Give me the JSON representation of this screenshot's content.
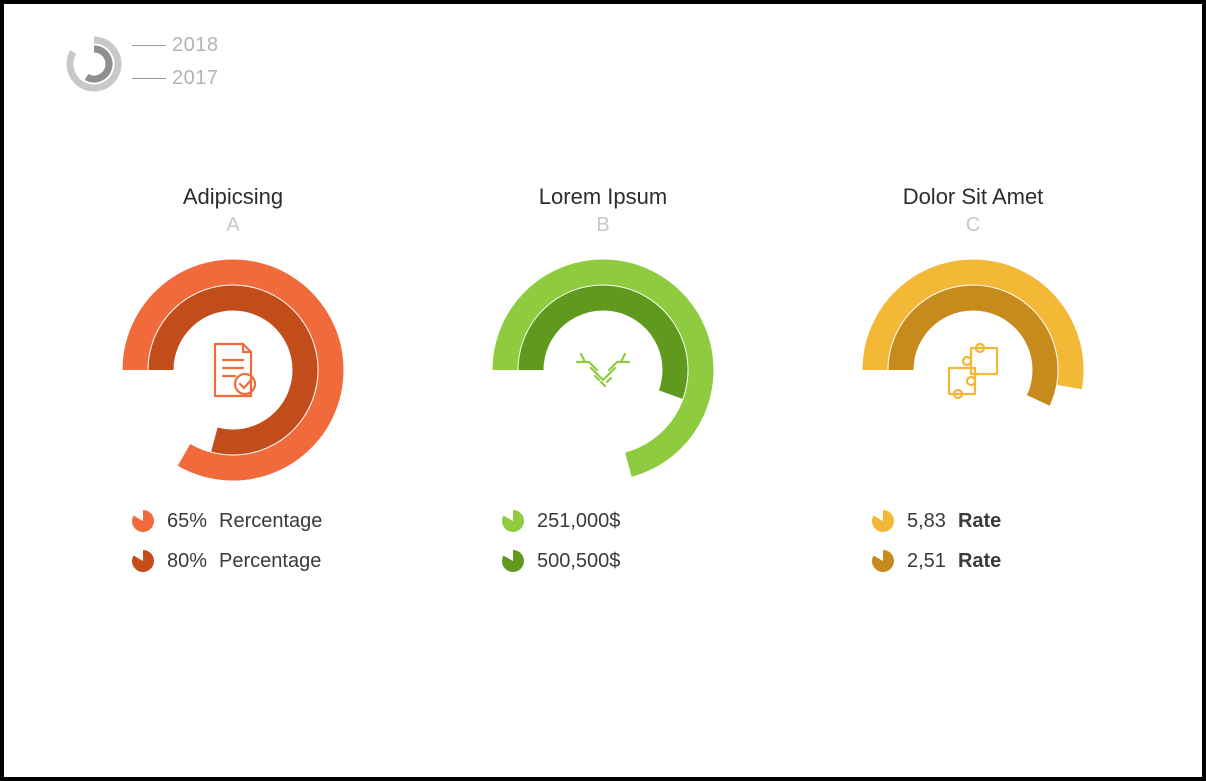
{
  "background_color": "#ffffff",
  "border_color": "#000000",
  "legend": {
    "outer_color": "#c8c8c8",
    "inner_color": "#8f8f8f",
    "outer_radius": 24,
    "inner_radius": 15,
    "stroke": 7,
    "outer_sweep_deg": 300,
    "inner_sweep_deg": 210,
    "labels_color": "#b3b3b3",
    "tick_color": "#9a9a9a",
    "items": [
      {
        "year": "2018"
      },
      {
        "year": "2017"
      }
    ]
  },
  "text_color": "#2c2c2c",
  "muted_color": "#c8c8c8",
  "ring": {
    "outer_radius": 98,
    "inner_radius": 72,
    "stroke": 25,
    "start_angle_deg": -90
  },
  "charts": [
    {
      "title": "Adipicsing",
      "letter": "A",
      "outer_color": "#f16a3b",
      "inner_color": "#c24c1a",
      "outer_sweep_deg": 300,
      "inner_sweep_deg": 285,
      "icon": "document-check-icon",
      "stats": [
        {
          "pie_color": "#f16a3b",
          "pie_fill_deg": 300,
          "value": "65%",
          "label": "Rercentage",
          "bold_label": false
        },
        {
          "pie_color": "#c24c1a",
          "pie_fill_deg": 300,
          "value": "80%",
          "label": "Percentage",
          "bold_label": false
        }
      ]
    },
    {
      "title": "Lorem Ipsum",
      "letter": "B",
      "outer_color": "#8ecb3f",
      "inner_color": "#5f9a1e",
      "outer_sweep_deg": 255,
      "inner_sweep_deg": 200,
      "icon": "handshake-icon",
      "stats": [
        {
          "pie_color": "#8ecb3f",
          "pie_fill_deg": 300,
          "value": "251,000$",
          "label": "",
          "bold_label": false
        },
        {
          "pie_color": "#5f9a1e",
          "pie_fill_deg": 300,
          "value": "500,500$",
          "label": "",
          "bold_label": false
        }
      ]
    },
    {
      "title": "Dolor Sit Amet",
      "letter": "C",
      "outer_color": "#f2b836",
      "inner_color": "#c78a1d",
      "outer_sweep_deg": 190,
      "inner_sweep_deg": 205,
      "icon": "puzzle-icon",
      "stats": [
        {
          "pie_color": "#f2b836",
          "pie_fill_deg": 300,
          "value": "5,83",
          "label": "Rate",
          "bold_label": true
        },
        {
          "pie_color": "#c78a1d",
          "pie_fill_deg": 300,
          "value": "2,51",
          "label": "Rate",
          "bold_label": true
        }
      ]
    }
  ]
}
